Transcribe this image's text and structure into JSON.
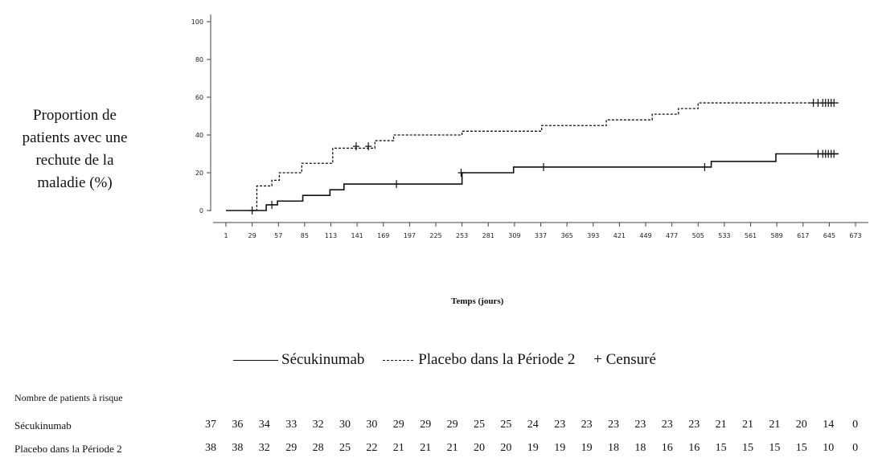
{
  "chart_data": {
    "type": "line",
    "title": "",
    "ylabel_lines": [
      "Proportion de",
      "patients avec une",
      "rechute de la",
      "maladie (%)"
    ],
    "xlabel": "Temps (jours)",
    "ylim": [
      0,
      100
    ],
    "xlim": [
      1,
      673
    ],
    "y_ticks": [
      0,
      20,
      40,
      60,
      80,
      100
    ],
    "x_ticks": [
      1,
      29,
      57,
      85,
      113,
      141,
      169,
      197,
      225,
      253,
      281,
      309,
      337,
      365,
      393,
      421,
      449,
      477,
      505,
      533,
      561,
      589,
      617,
      645,
      673
    ],
    "legend": {
      "series1": "Sécukinumab",
      "series2": "Placebo dans la Période 2",
      "censor": "+ Censuré"
    },
    "series": [
      {
        "name": "Sécukinumab",
        "style": "solid",
        "steps": [
          [
            1,
            0
          ],
          [
            30,
            0
          ],
          [
            44,
            3
          ],
          [
            56,
            5
          ],
          [
            83,
            8
          ],
          [
            112,
            11
          ],
          [
            127,
            14
          ],
          [
            253,
            20
          ],
          [
            308,
            23
          ],
          [
            519,
            26
          ],
          [
            588,
            30
          ],
          [
            655,
            30
          ]
        ],
        "censored": [
          [
            29,
            0
          ],
          [
            50,
            3
          ],
          [
            183,
            14
          ],
          [
            252,
            20
          ],
          [
            340,
            23
          ],
          [
            512,
            23
          ],
          [
            633,
            30
          ],
          [
            638,
            30
          ],
          [
            641,
            30
          ],
          [
            644,
            30
          ],
          [
            647,
            30
          ],
          [
            650,
            30
          ]
        ]
      },
      {
        "name": "Placebo dans la Période 2",
        "style": "dashed",
        "steps": [
          [
            29,
            0
          ],
          [
            34,
            13
          ],
          [
            50,
            16
          ],
          [
            58,
            20
          ],
          [
            82,
            25
          ],
          [
            115,
            33
          ],
          [
            160,
            37
          ],
          [
            180,
            40
          ],
          [
            253,
            42
          ],
          [
            338,
            45
          ],
          [
            407,
            48
          ],
          [
            456,
            51
          ],
          [
            484,
            54
          ],
          [
            505,
            57
          ],
          [
            655,
            57
          ]
        ],
        "censored": [
          [
            140,
            34
          ],
          [
            153,
            34
          ],
          [
            628,
            57
          ],
          [
            633,
            57
          ],
          [
            638,
            57
          ],
          [
            641,
            57
          ],
          [
            644,
            57
          ],
          [
            647,
            57
          ],
          [
            650,
            57
          ]
        ]
      }
    ],
    "risk_table": {
      "title": "Nombre de patients à risque",
      "rows": [
        {
          "label": "Sécukinumab",
          "values": [
            37,
            36,
            34,
            33,
            32,
            30,
            30,
            29,
            29,
            29,
            25,
            25,
            24,
            23,
            23,
            23,
            23,
            23,
            23,
            21,
            21,
            21,
            20,
            14,
            0
          ]
        },
        {
          "label": "Placebo dans la Période 2",
          "values": [
            38,
            38,
            32,
            29,
            28,
            25,
            22,
            21,
            21,
            21,
            20,
            20,
            19,
            19,
            19,
            18,
            18,
            16,
            16,
            15,
            15,
            15,
            15,
            10,
            0
          ]
        }
      ]
    }
  }
}
